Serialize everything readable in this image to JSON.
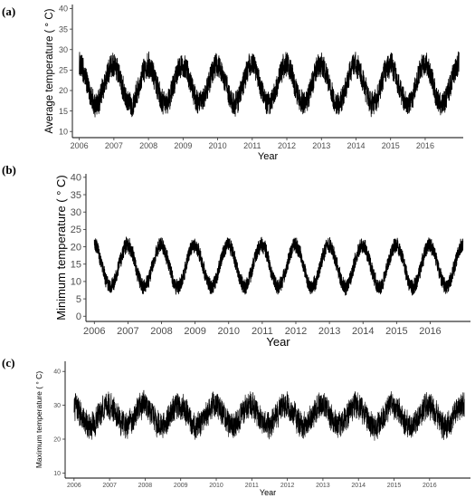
{
  "chart_data": [
    {
      "type": "line",
      "panel_label": "(a)",
      "title": "",
      "xlabel": "Year",
      "ylabel": "Average temperature ( ° C)",
      "x_ticks": [
        "2006",
        "2007",
        "2008",
        "2009",
        "2010",
        "2011",
        "2012",
        "2013",
        "2014",
        "2015",
        "2016"
      ],
      "xlim": [
        2005.8,
        2017.1
      ],
      "ylim": [
        8.5,
        41
      ],
      "y_ticks": [
        10,
        15,
        20,
        25,
        30,
        35,
        40
      ],
      "grid": false,
      "series": [
        {
          "color": "#000000",
          "seasonal": {
            "t_start": 2006.0,
            "t_end": 2016.98,
            "mean": 21.5,
            "amplitude": 4.8,
            "peak_phase": 0.98,
            "noise": 3.2
          },
          "anchors": [
            [
              2006.05,
              22
            ],
            [
              2006.4,
              18
            ],
            [
              2006.7,
              28
            ],
            [
              2007.1,
              26
            ],
            [
              2007.55,
              15
            ],
            [
              2007.95,
              24
            ],
            [
              2008.55,
              14
            ],
            [
              2008.95,
              26
            ],
            [
              2009.5,
              15
            ],
            [
              2009.95,
              24
            ],
            [
              2010.5,
              14
            ],
            [
              2010.95,
              24
            ],
            [
              2011.5,
              16
            ],
            [
              2011.95,
              25
            ],
            [
              2012.5,
              15
            ],
            [
              2012.95,
              25
            ],
            [
              2013.5,
              16
            ],
            [
              2013.95,
              25
            ],
            [
              2014.5,
              16
            ],
            [
              2014.95,
              25
            ],
            [
              2015.5,
              15
            ],
            [
              2015.95,
              26
            ],
            [
              2016.5,
              16
            ],
            [
              2016.95,
              25
            ]
          ]
        }
      ]
    },
    {
      "type": "line",
      "panel_label": "(b)",
      "title": "",
      "xlabel": "Year",
      "ylabel": "Minimum temperature ( ° C)",
      "x_ticks": [
        "2006",
        "2007",
        "2008",
        "2009",
        "2010",
        "2011",
        "2012",
        "2013",
        "2014",
        "2015",
        "2016"
      ],
      "xlim": [
        2005.75,
        2017.2
      ],
      "ylim": [
        -1.5,
        41
      ],
      "y_ticks": [
        0,
        5,
        10,
        15,
        20,
        25,
        30,
        35,
        40
      ],
      "grid": false,
      "series": [
        {
          "color": "#000000",
          "seasonal": {
            "t_start": 2006.0,
            "t_end": 2016.98,
            "mean": 14.5,
            "amplitude": 6.0,
            "peak_phase": 0.98,
            "noise": 2.4
          },
          "anchors": [
            [
              2006.05,
              20
            ],
            [
              2006.5,
              8
            ],
            [
              2006.95,
              21
            ],
            [
              2007.5,
              7
            ],
            [
              2007.95,
              20
            ],
            [
              2008.5,
              8
            ],
            [
              2008.95,
              20
            ],
            [
              2009.5,
              6
            ],
            [
              2009.95,
              18
            ],
            [
              2010.5,
              6
            ],
            [
              2010.95,
              19
            ],
            [
              2011.5,
              9
            ],
            [
              2011.95,
              20
            ],
            [
              2012.5,
              9
            ],
            [
              2012.95,
              20
            ],
            [
              2013.5,
              8
            ],
            [
              2013.95,
              20
            ],
            [
              2014.5,
              8
            ],
            [
              2014.95,
              21
            ],
            [
              2015.5,
              9
            ],
            [
              2015.95,
              21
            ],
            [
              2016.5,
              9
            ],
            [
              2016.95,
              20
            ]
          ]
        }
      ]
    },
    {
      "type": "line",
      "panel_label": "(c)",
      "title": "",
      "xlabel": "Year",
      "ylabel": "Maximum temperature ( ° C)",
      "x_ticks": [
        "2006",
        "2007",
        "2008",
        "2009",
        "2010",
        "2011",
        "2012",
        "2013",
        "2014",
        "2015",
        "2016"
      ],
      "xlim": [
        2005.75,
        2017.15
      ],
      "ylim": [
        8.5,
        43
      ],
      "y_ticks": [
        10,
        20,
        30,
        40
      ],
      "grid": false,
      "series": [
        {
          "color": "#000000",
          "seasonal": {
            "t_start": 2006.0,
            "t_end": 2016.98,
            "mean": 27.0,
            "amplitude": 3.0,
            "peak_phase": 0.95,
            "noise": 4.2
          },
          "anchors": [
            [
              2006.05,
              26
            ],
            [
              2006.5,
              25
            ],
            [
              2006.95,
              30
            ],
            [
              2007.5,
              25
            ],
            [
              2007.95,
              28
            ],
            [
              2008.5,
              24
            ],
            [
              2008.95,
              30
            ],
            [
              2009.5,
              25
            ],
            [
              2009.95,
              27
            ],
            [
              2010.5,
              23
            ],
            [
              2010.95,
              29
            ],
            [
              2011.5,
              25
            ],
            [
              2011.95,
              28
            ],
            [
              2012.5,
              25
            ],
            [
              2012.95,
              29
            ],
            [
              2013.5,
              25
            ],
            [
              2013.95,
              28
            ],
            [
              2014.5,
              25
            ],
            [
              2014.95,
              29
            ],
            [
              2015.5,
              25
            ],
            [
              2015.95,
              31
            ],
            [
              2016.5,
              25
            ],
            [
              2016.95,
              30
            ]
          ]
        }
      ]
    }
  ]
}
